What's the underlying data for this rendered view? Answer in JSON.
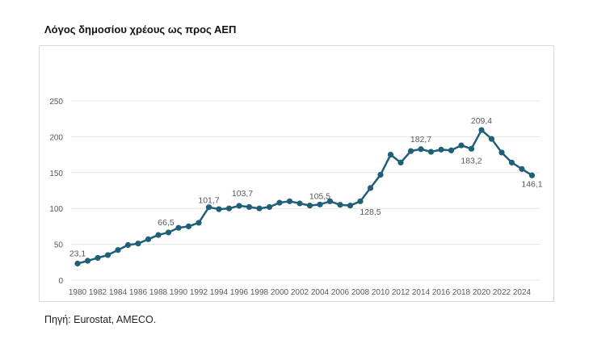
{
  "title": "Λόγος δημοσίου χρέους ως προς ΑΕΠ",
  "source": "Πηγή: Eurostat, AMECO.",
  "chart_data": {
    "type": "line",
    "title": "Λόγος δημοσίου χρέους ως προς ΑΕΠ",
    "xlabel": "",
    "ylabel": "",
    "ylim": [
      0,
      250
    ],
    "yticks": [
      0,
      50,
      100,
      150,
      200,
      250
    ],
    "xticks": [
      "1980",
      "1982",
      "1984",
      "1986",
      "1988",
      "1990",
      "1992",
      "1994",
      "1996",
      "1998",
      "2000",
      "2002",
      "2004",
      "2006",
      "2008",
      "2010",
      "2012",
      "2014",
      "2016",
      "2018",
      "2020",
      "2022",
      "2024"
    ],
    "grid": "horizontal",
    "color": "#1f5f78",
    "x": [
      1980,
      1981,
      1982,
      1983,
      1984,
      1985,
      1986,
      1987,
      1988,
      1989,
      1990,
      1991,
      1992,
      1993,
      1994,
      1995,
      1996,
      1997,
      1998,
      1999,
      2000,
      2001,
      2002,
      2003,
      2004,
      2005,
      2006,
      2007,
      2008,
      2009,
      2010,
      2011,
      2012,
      2013,
      2014,
      2015,
      2016,
      2017,
      2018,
      2019,
      2020,
      2021,
      2022,
      2023,
      2024,
      2025
    ],
    "values": [
      23.1,
      27,
      31,
      35,
      42,
      49,
      51,
      57,
      63,
      66.5,
      73,
      75,
      80,
      101.7,
      99,
      100,
      103.7,
      102,
      100,
      102,
      108,
      110,
      107,
      104,
      105.5,
      110,
      105,
      104,
      110,
      128.5,
      147,
      175,
      164,
      180,
      182.7,
      179,
      182,
      181,
      188,
      183.2,
      209.4,
      197,
      178,
      164,
      155,
      146.1
    ],
    "data_labels": [
      {
        "x": 1980,
        "text": "23,1"
      },
      {
        "x": 1989,
        "text": "66,5"
      },
      {
        "x": 1993,
        "text": "101,7"
      },
      {
        "x": 1996,
        "text": "103,7"
      },
      {
        "x": 2004,
        "text": "105,5"
      },
      {
        "x": 2009,
        "text": "128,5"
      },
      {
        "x": 2014,
        "text": "182,7"
      },
      {
        "x": 2019,
        "text": "183,2"
      },
      {
        "x": 2020,
        "text": "209,4"
      },
      {
        "x": 2025,
        "text": "146,1"
      }
    ]
  }
}
